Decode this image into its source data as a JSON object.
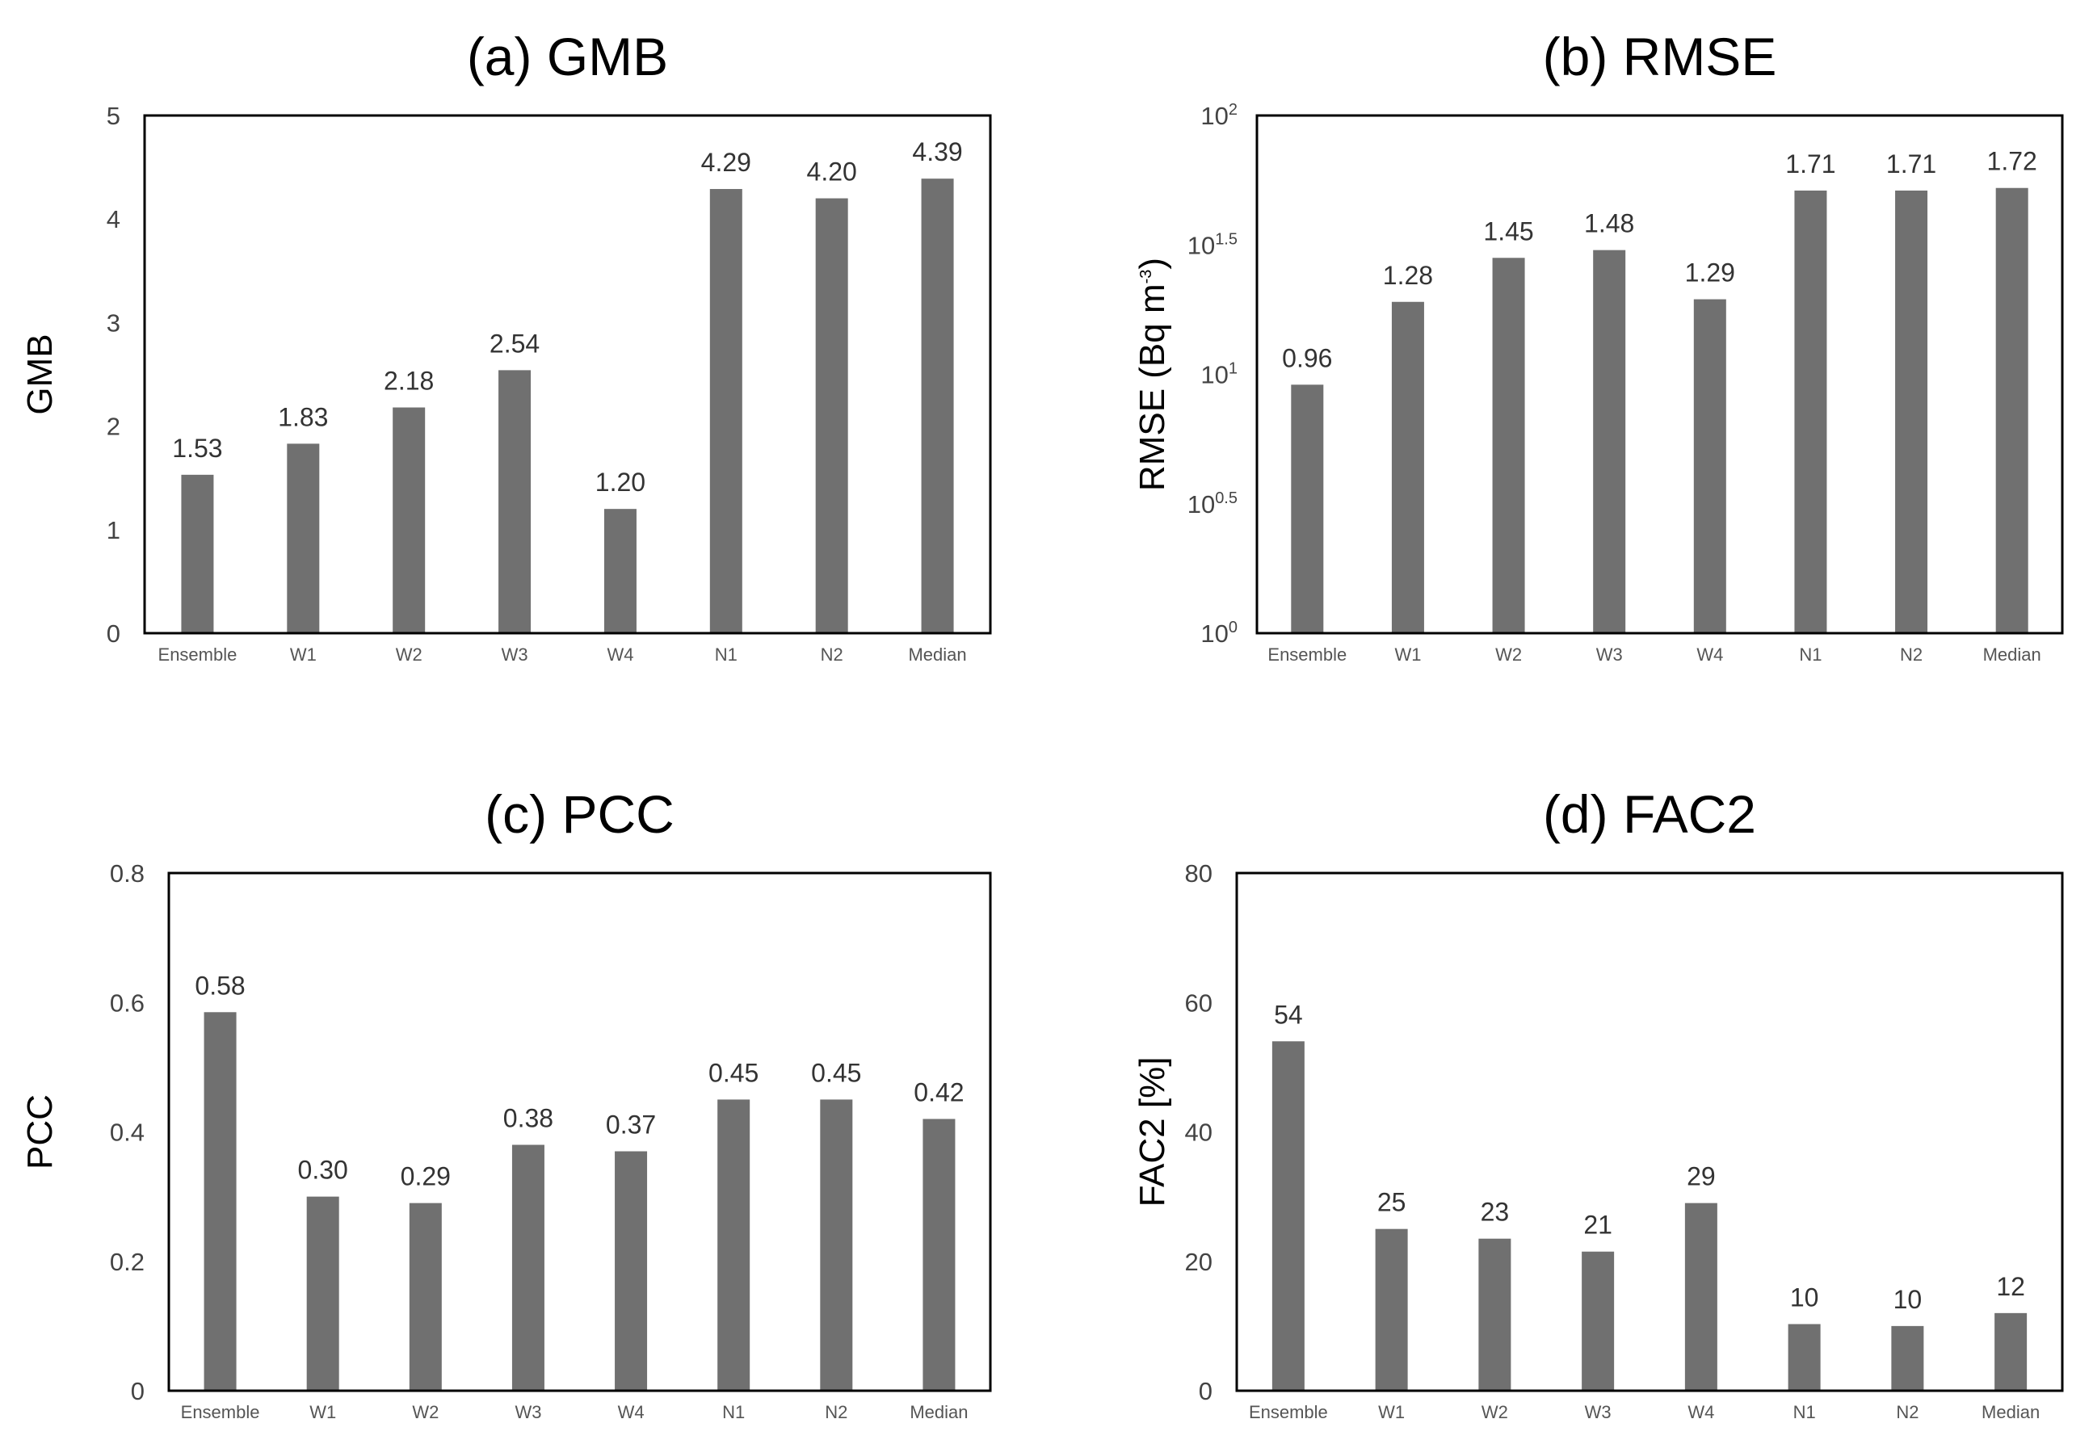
{
  "chart_data": [
    {
      "type": "bar",
      "title": "(a) GMB",
      "ylabel": "GMB",
      "xlabel": "",
      "categories": [
        "Ensemble",
        "W1",
        "W2",
        "W3",
        "W4",
        "N1",
        "N2",
        "Median"
      ],
      "values": [
        1.53,
        1.83,
        2.18,
        2.54,
        1.2,
        4.29,
        4.2,
        4.39
      ],
      "data_labels": [
        "1.53",
        "1.83",
        "2.18",
        "2.54",
        "1.20",
        "4.29",
        "4.20",
        "4.39"
      ],
      "ylim": [
        0,
        5
      ],
      "yticks": [
        0,
        1,
        2,
        3,
        4,
        5
      ],
      "ytick_labels": [
        "0",
        "1",
        "2",
        "3",
        "4",
        "5"
      ],
      "grid": false,
      "bar_color": "#707070"
    },
    {
      "type": "bar",
      "title": "(b) RMSE",
      "ylabel": "RMSE (Bq m-3)",
      "ylabel_parts": [
        "RMSE (Bq m",
        "-3",
        ")"
      ],
      "xlabel": "",
      "scale": "log10",
      "categories": [
        "Ensemble",
        "W1",
        "W2",
        "W3",
        "W4",
        "N1",
        "N2",
        "Median"
      ],
      "values": [
        0.96,
        1.28,
        1.45,
        1.48,
        1.29,
        1.71,
        1.71,
        1.72
      ],
      "values_note": "log10 exponents",
      "data_labels": [
        "0.96",
        "1.28",
        "1.45",
        "1.48",
        "1.29",
        "1.71",
        "1.71",
        "1.72"
      ],
      "ylim": [
        0,
        2
      ],
      "yticks": [
        0,
        0.5,
        1,
        1.5,
        2
      ],
      "ytick_labels": [
        [
          "10",
          "0"
        ],
        [
          "10",
          "0.5"
        ],
        [
          "10",
          "1"
        ],
        [
          "10",
          "1.5"
        ],
        [
          "10",
          "2"
        ]
      ],
      "grid": false,
      "bar_color": "#707070"
    },
    {
      "type": "bar",
      "title": "(c) PCC",
      "ylabel": "PCC",
      "xlabel": "",
      "categories": [
        "Ensemble",
        "W1",
        "W2",
        "W3",
        "W4",
        "N1",
        "N2",
        "Median"
      ],
      "values": [
        0.585,
        0.3,
        0.29,
        0.38,
        0.37,
        0.45,
        0.45,
        0.42
      ],
      "data_labels": [
        "0.58",
        "0.30",
        "0.29",
        "0.38",
        "0.37",
        "0.45",
        "0.45",
        "0.42"
      ],
      "ylim": [
        0,
        0.8
      ],
      "yticks": [
        0,
        0.2,
        0.4,
        0.6,
        0.8
      ],
      "ytick_labels": [
        "0",
        "0.2",
        "0.4",
        "0.6",
        "0.8"
      ],
      "grid": false,
      "bar_color": "#707070"
    },
    {
      "type": "bar",
      "title": "(d) FAC2",
      "ylabel": "FAC2 [%]",
      "xlabel": "",
      "categories": [
        "Ensemble",
        "W1",
        "W2",
        "W3",
        "W4",
        "N1",
        "N2",
        "Median"
      ],
      "values": [
        54,
        25,
        23.5,
        21.5,
        29,
        10.3,
        10,
        12
      ],
      "data_labels": [
        "54",
        "25",
        "23",
        "21",
        "29",
        "10",
        "10",
        "12"
      ],
      "ylim": [
        0,
        80
      ],
      "yticks": [
        0,
        20,
        40,
        60,
        80
      ],
      "ytick_labels": [
        "0",
        "20",
        "40",
        "60",
        "80"
      ],
      "grid": false,
      "bar_color": "#707070"
    }
  ]
}
